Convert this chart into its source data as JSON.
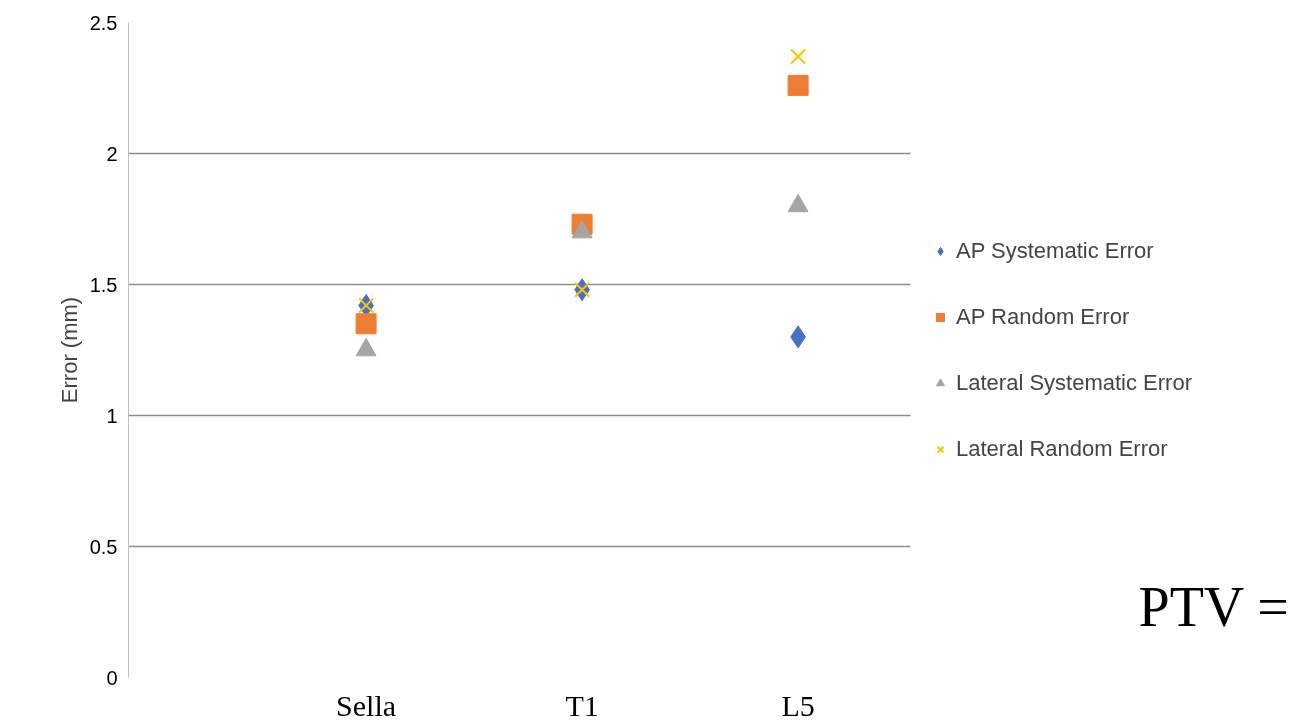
{
  "chart_data": {
    "type": "scatter",
    "ylabel": "Error (mm)",
    "categories": [
      "Sella",
      "T1",
      "L5"
    ],
    "series": [
      {
        "name": "AP Systematic Error",
        "color": "#4472c4",
        "marker": "diamond",
        "values": [
          1.42,
          1.48,
          1.3
        ]
      },
      {
        "name": "AP Random Error",
        "color": "#ed7d31",
        "marker": "square",
        "values": [
          1.35,
          1.73,
          2.26
        ]
      },
      {
        "name": "Lateral Systematic Error",
        "color": "#a5a5a5",
        "marker": "triangle",
        "values": [
          1.25,
          1.7,
          1.8
        ]
      },
      {
        "name": "Lateral Random Error",
        "color": "#ffc000",
        "marker": "cross",
        "values": [
          1.42,
          1.48,
          2.37
        ]
      }
    ],
    "ylim": [
      0,
      2.5
    ],
    "yticks": [
      0,
      0.5,
      1,
      1.5,
      2,
      2.5
    ],
    "grid": "y",
    "legend": "right",
    "annotations": [
      "PTV ="
    ]
  }
}
